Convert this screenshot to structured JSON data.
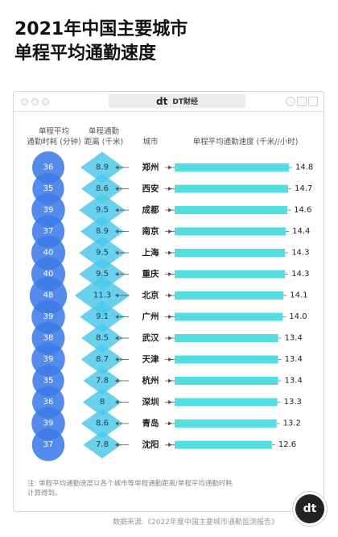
{
  "title_lines": [
    "2021年中国主要城市",
    "单程平均通勤速度"
  ],
  "brand": {
    "logo": "dt",
    "name": "DT财经"
  },
  "headers": {
    "time": [
      "单程平均",
      "通勤时耗 (分钟)"
    ],
    "distance": [
      "单程通勤",
      "距离 (千米)"
    ],
    "city": "城市",
    "speed": "单程平均通勤速度 (千米//小时)"
  },
  "note": [
    "注: 单程平均通勤速度以各个城市等单程通勤距离/单程平均通勤时耗",
    "计算得到。"
  ],
  "source": "数据来源:《2022年度中国主要城市通勤监测报告》",
  "colors": {
    "bubble": "#3d7be8",
    "diamond": "#4fc9e9",
    "bar": "#52dde5",
    "marker": "#555555"
  },
  "chart_data": {
    "type": "bar",
    "orientation": "horizontal",
    "categories": [
      "郑州",
      "西安",
      "成都",
      "南京",
      "上海",
      "重庆",
      "北京",
      "广州",
      "武汉",
      "天津",
      "杭州",
      "深圳",
      "青岛",
      "沈阳"
    ],
    "commute_time_min": [
      36,
      35,
      39,
      37,
      40,
      40,
      48,
      39,
      38,
      39,
      35,
      36,
      39,
      37
    ],
    "commute_distance_km": [
      "8.9",
      "8.6",
      "9.5",
      "8.9",
      "9.5",
      "9.5",
      "11.3",
      "9.1",
      "8.5",
      "8.7",
      "7.8",
      "8",
      "8.6",
      "7.8"
    ],
    "speed_kmh": [
      "14.8",
      "14.7",
      "14.6",
      "14.4",
      "14.3",
      "14.3",
      "14.1",
      "14.0",
      "13.4",
      "13.4",
      "13.4",
      "13.3",
      "13.2",
      "12.6"
    ]
  }
}
